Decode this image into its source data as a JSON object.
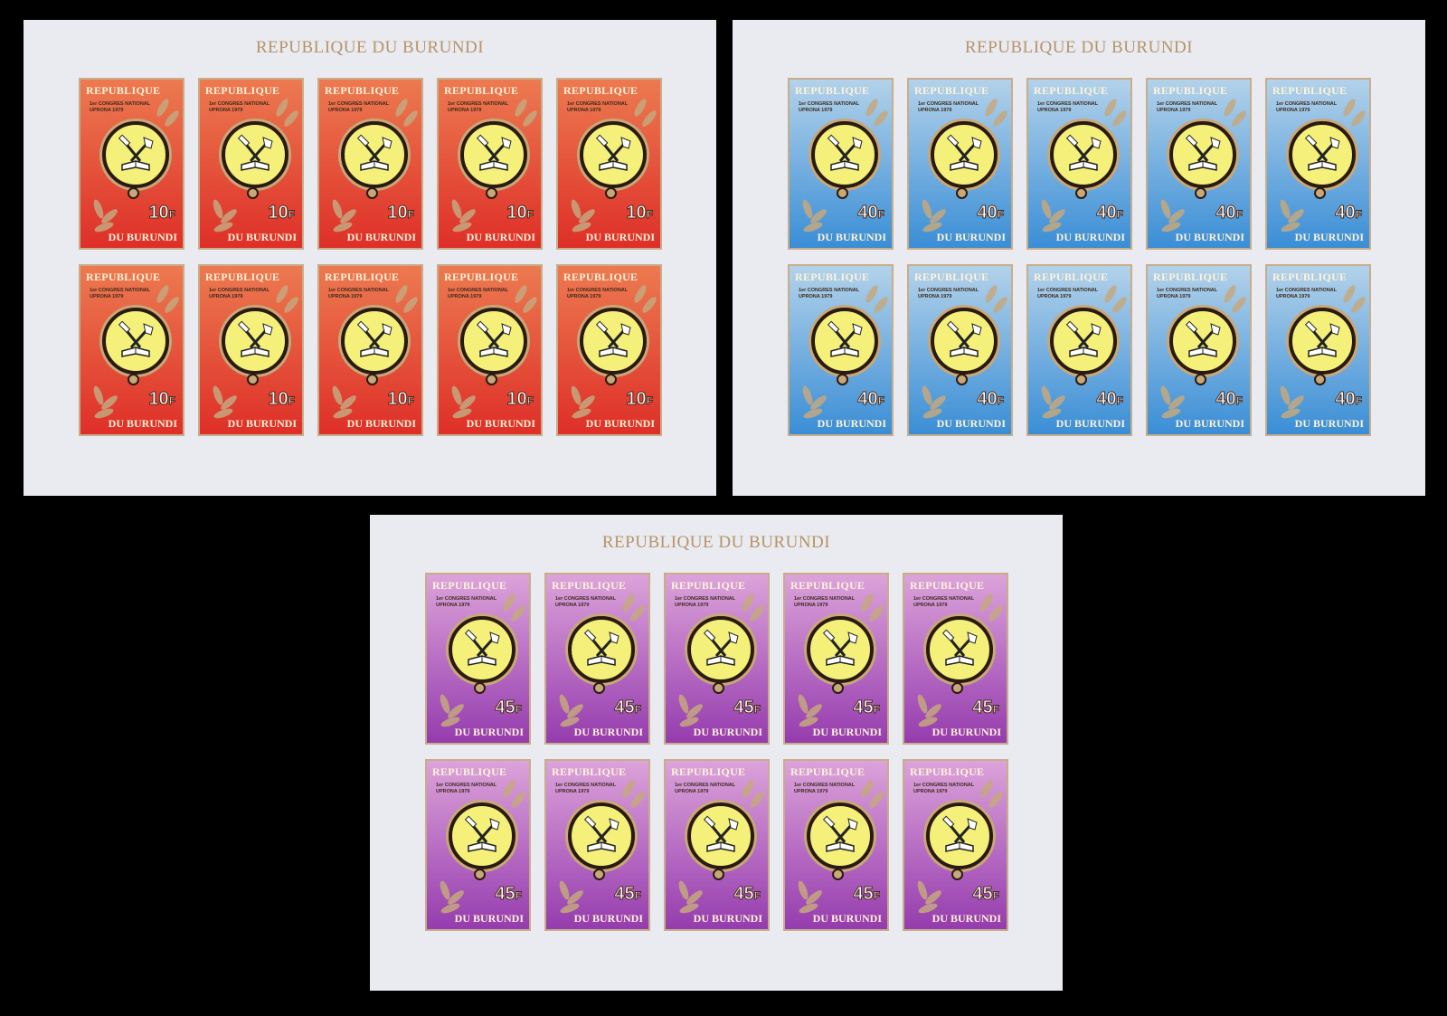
{
  "sheet_title": "REPUBLIQUE DU BURUNDI",
  "stamp_text": {
    "top": "REPUBLIQUE",
    "subtitle_line1": "1er CONGRES NATIONAL",
    "subtitle_line2": "UPRONA 1979",
    "bottom": "DU BURUNDI",
    "currency": "F"
  },
  "sheets": [
    {
      "value": "10",
      "color_top": "#ec7a50",
      "color_bottom": "#de2f28",
      "stamp_count": 10
    },
    {
      "value": "40",
      "color_top": "#b3d2ea",
      "color_bottom": "#3a8ed6",
      "stamp_count": 10
    },
    {
      "value": "45",
      "color_top": "#dca3da",
      "color_bottom": "#953cae",
      "stamp_count": 10
    }
  ]
}
